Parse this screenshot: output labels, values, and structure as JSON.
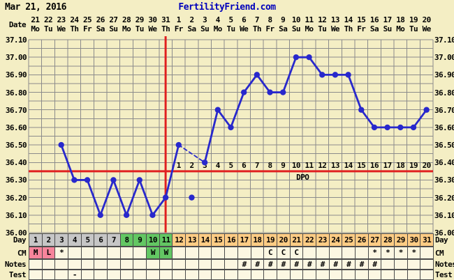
{
  "header": {
    "date": "Mar 21, 2016",
    "site": "FertilityFriend.com"
  },
  "labels": {
    "date": "Date",
    "day": "Day",
    "cm": "CM",
    "notes": "Notes",
    "test": "Test",
    "dpo": "DPO"
  },
  "colors": {
    "background": "#f4eec4",
    "cell_cream": "#fcf7e2",
    "phase_pre": "#c6c6c6",
    "phase_fertile": "#63c763",
    "phase_luteal": "#ffcc84",
    "cm_pink": "#f7849b",
    "cm_green": "#63c763",
    "grid": "#8b8b8b",
    "border_dark": "#4a4a4a",
    "red_line": "#e02020",
    "temp_blue": "#2828cc",
    "title_blue": "#0000bb"
  },
  "chart_data": {
    "type": "line",
    "title": "Basal body temperature cycle chart",
    "ylabel": "Temperature (C)",
    "ylim": [
      36.0,
      37.1
    ],
    "grid_step": 0.05,
    "y_ticks": [
      "37.10",
      "37.00",
      "36.90",
      "36.80",
      "36.70",
      "36.60",
      "36.50",
      "36.40",
      "36.30",
      "36.20",
      "36.10",
      "36.00"
    ],
    "cycle_days": [
      1,
      2,
      3,
      4,
      5,
      6,
      7,
      8,
      9,
      10,
      11,
      12,
      13,
      14,
      15,
      16,
      17,
      18,
      19,
      20,
      21,
      22,
      23,
      24,
      25,
      26,
      27,
      28,
      29,
      30,
      31
    ],
    "dates": [
      "21",
      "22",
      "23",
      "24",
      "25",
      "26",
      "27",
      "28",
      "29",
      "30",
      "31",
      "1",
      "2",
      "3",
      "4",
      "5",
      "6",
      "7",
      "8",
      "9",
      "10",
      "11",
      "12",
      "13",
      "14",
      "15",
      "16",
      "17",
      "18",
      "19",
      "20"
    ],
    "weekdays": [
      "Mo",
      "Tu",
      "We",
      "Th",
      "Fr",
      "Sa",
      "Su",
      "Mo",
      "Tu",
      "We",
      "Th",
      "Fr",
      "Sa",
      "Su",
      "Mo",
      "Tu",
      "We",
      "Th",
      "Fr",
      "Sa",
      "Su",
      "Mo",
      "Tu",
      "We",
      "Th",
      "Fr",
      "Sa",
      "Su",
      "Mo",
      "Tu",
      "We"
    ],
    "temps": [
      null,
      null,
      36.5,
      36.3,
      36.3,
      36.1,
      36.3,
      36.1,
      36.3,
      36.1,
      36.2,
      36.5,
      36.2,
      36.4,
      36.7,
      36.6,
      36.8,
      36.9,
      36.8,
      36.8,
      37.0,
      37.0,
      36.9,
      36.9,
      36.9,
      36.7,
      36.6,
      36.6,
      36.6,
      36.6,
      36.7
    ],
    "discarded_days": [
      13
    ],
    "coverline": 36.35,
    "ovulation_day": 11,
    "dpo_start_day": 12,
    "dpo_labels": [
      "1",
      "2",
      "3",
      "4",
      "5",
      "6",
      "7",
      "8",
      "9",
      "10",
      "11",
      "12",
      "13",
      "14",
      "15",
      "16",
      "17",
      "18",
      "19",
      "20"
    ]
  },
  "rows": {
    "day": {
      "values": [
        "1",
        "2",
        "3",
        "4",
        "5",
        "6",
        "7",
        "8",
        "9",
        "10",
        "11",
        "12",
        "13",
        "14",
        "15",
        "16",
        "17",
        "18",
        "19",
        "20",
        "21",
        "22",
        "23",
        "24",
        "25",
        "26",
        "27",
        "28",
        "29",
        "30",
        "31"
      ],
      "phase": [
        "pre",
        "pre",
        "pre",
        "pre",
        "pre",
        "pre",
        "pre",
        "fertile",
        "fertile",
        "fertile",
        "fertile",
        "luteal",
        "luteal",
        "luteal",
        "luteal",
        "luteal",
        "luteal",
        "luteal",
        "luteal",
        "luteal",
        "luteal",
        "luteal",
        "luteal",
        "luteal",
        "luteal",
        "luteal",
        "luteal",
        "luteal",
        "luteal",
        "luteal",
        "luteal"
      ]
    },
    "cm": {
      "text": [
        "M",
        "L",
        "*",
        "",
        "",
        "",
        "",
        "",
        "",
        "W",
        "W",
        "",
        "",
        "",
        "",
        "",
        "",
        "",
        "C",
        "C",
        "C",
        "",
        "",
        "",
        "",
        "",
        "*",
        "*",
        "*",
        "*",
        ""
      ],
      "bg": [
        "pink",
        "pink",
        "",
        "",
        "",
        "",
        "",
        "",
        "",
        "green",
        "green",
        "",
        "",
        "",
        "",
        "",
        "",
        "",
        "",
        "",
        "",
        "",
        "",
        "",
        "",
        "",
        "",
        "",
        "",
        "",
        ""
      ]
    },
    "notes": {
      "text": [
        "",
        "",
        "",
        "",
        "",
        "",
        "",
        "",
        "",
        "",
        "",
        "",
        "",
        "",
        "",
        "",
        "#",
        "#",
        "#",
        "#",
        "#",
        "#",
        "#",
        "#",
        "#",
        "#",
        "#",
        "",
        "",
        "",
        ""
      ]
    },
    "test": {
      "text": [
        "",
        "",
        "",
        "-",
        "",
        "",
        "",
        "",
        "",
        "",
        "",
        "",
        "",
        "",
        "",
        "",
        "",
        "",
        "",
        "",
        "",
        "",
        "",
        "",
        "",
        "",
        "",
        "",
        "",
        "",
        ""
      ]
    }
  }
}
